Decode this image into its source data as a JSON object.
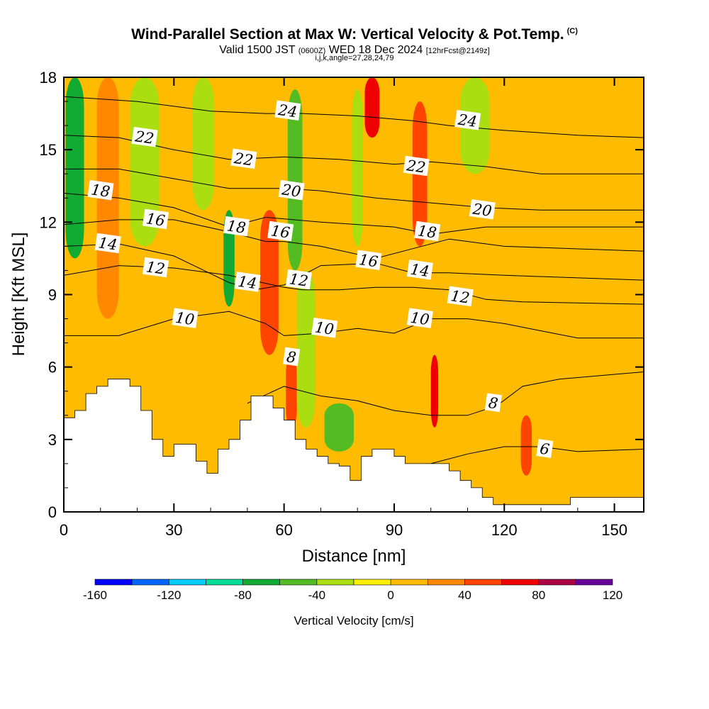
{
  "header": {
    "title": "Wind-Parallel Section at Max W: Vertical Velocity & Pot.Temp.",
    "copyright_mark": "(C)",
    "valid_prefix": "Valid 1500 JST",
    "utc": "(0600Z)",
    "valid_date": "WED 18 Dec 2024",
    "forecast": "[12hrFcst@2149z]",
    "indices": "i,j,k,angle=27,28,24,79"
  },
  "chart_data": {
    "type": "heatmap",
    "title": "Wind-Parallel Section at Max W: Vertical Velocity & Pot.Temp.",
    "xlabel": "Distance [nm]",
    "ylabel": "Height [Kft MSL]",
    "xlim": [
      0,
      158
    ],
    "ylim": [
      0,
      18
    ],
    "x_ticks": [
      0,
      30,
      60,
      90,
      120,
      150
    ],
    "y_ticks": [
      0,
      3,
      6,
      9,
      12,
      15,
      18
    ],
    "colorbar": {
      "title": "Vertical Velocity [cm/s]",
      "ticks": [
        -160,
        -120,
        -80,
        -40,
        0,
        40,
        80,
        120
      ],
      "bounds": [
        -160,
        -140,
        -120,
        -100,
        -80,
        -60,
        -40,
        -20,
        0,
        20,
        40,
        60,
        80,
        100,
        120
      ],
      "colors": [
        "#0000ff",
        "#0066ff",
        "#00ccff",
        "#00dd99",
        "#11aa33",
        "#55bb22",
        "#aade11",
        "#ffee00",
        "#ffbb00",
        "#ff8800",
        "#ff4400",
        "#ee0000",
        "#aa0044",
        "#660099"
      ]
    },
    "vertical_velocity_bands": [
      {
        "x": 3,
        "w": 5,
        "z0": 10.5,
        "z1": 18,
        "value": -70
      },
      {
        "x": 12,
        "w": 6,
        "z0": 8,
        "z1": 18,
        "value": 20
      },
      {
        "x": 22,
        "w": 8,
        "z0": 11,
        "z1": 18,
        "value": -40
      },
      {
        "x": 38,
        "w": 6,
        "z0": 12.5,
        "z1": 18,
        "value": -30
      },
      {
        "x": 45,
        "w": 3,
        "z0": 8.5,
        "z1": 12.5,
        "value": -70
      },
      {
        "x": 56,
        "w": 5,
        "z0": 6.5,
        "z1": 12.5,
        "value": 50
      },
      {
        "x": 62,
        "w": 3,
        "z0": 3.5,
        "z1": 6.5,
        "value": 55
      },
      {
        "x": 63,
        "w": 4,
        "z0": 10,
        "z1": 17.5,
        "value": -60
      },
      {
        "x": 66,
        "w": 5,
        "z0": 3.5,
        "z1": 10,
        "value": -40
      },
      {
        "x": 75,
        "w": 8,
        "z0": 2.5,
        "z1": 4.5,
        "value": -45
      },
      {
        "x": 80,
        "w": 3,
        "z0": 11,
        "z1": 17.5,
        "value": -35
      },
      {
        "x": 84,
        "w": 4,
        "z0": 15.5,
        "z1": 18,
        "value": 60
      },
      {
        "x": 97,
        "w": 4,
        "z0": 11,
        "z1": 17,
        "value": 55
      },
      {
        "x": 101,
        "w": 2,
        "z0": 3.5,
        "z1": 6.5,
        "value": 60
      },
      {
        "x": 112,
        "w": 8,
        "z0": 14,
        "z1": 18,
        "value": -35
      },
      {
        "x": 126,
        "w": 3,
        "z0": 1.5,
        "z1": 4,
        "value": 40
      }
    ],
    "potential_temperature_contours": [
      {
        "level": 6,
        "points": [
          [
            100,
            2.0
          ],
          [
            110,
            2.4
          ],
          [
            120,
            2.7
          ],
          [
            130,
            2.7
          ],
          [
            140,
            2.5
          ],
          [
            158,
            2.6
          ]
        ]
      },
      {
        "level": 8,
        "points": [
          [
            50,
            4.5
          ],
          [
            60,
            5.2
          ],
          [
            70,
            4.8
          ],
          [
            80,
            4.6
          ],
          [
            90,
            4.2
          ],
          [
            100,
            4.0
          ],
          [
            110,
            4.0
          ],
          [
            118,
            4.4
          ],
          [
            125,
            5.2
          ],
          [
            135,
            5.5
          ],
          [
            158,
            5.8
          ]
        ]
      },
      {
        "level": 10,
        "points": [
          [
            0,
            7.3
          ],
          [
            15,
            7.3
          ],
          [
            30,
            8.0
          ],
          [
            45,
            8.3
          ],
          [
            55,
            7.8
          ],
          [
            60,
            7.3
          ],
          [
            70,
            7.4
          ],
          [
            80,
            7.6
          ],
          [
            90,
            7.4
          ],
          [
            100,
            8.0
          ],
          [
            110,
            8.0
          ],
          [
            120,
            7.8
          ],
          [
            130,
            7.5
          ],
          [
            140,
            7.2
          ],
          [
            158,
            7.2
          ]
        ]
      },
      {
        "level": 12,
        "points": [
          [
            0,
            9.8
          ],
          [
            15,
            10.2
          ],
          [
            30,
            10.1
          ],
          [
            45,
            9.8
          ],
          [
            60,
            9.3
          ],
          [
            65,
            9.2
          ],
          [
            75,
            9.2
          ],
          [
            85,
            9.3
          ],
          [
            95,
            9.3
          ],
          [
            105,
            9.2
          ],
          [
            115,
            8.8
          ],
          [
            125,
            8.7
          ],
          [
            158,
            8.6
          ]
        ]
      },
      {
        "level": 14,
        "points": [
          [
            0,
            11.0
          ],
          [
            15,
            11.1
          ],
          [
            30,
            10.6
          ],
          [
            45,
            9.5
          ],
          [
            52,
            9.2
          ],
          [
            60,
            9.4
          ],
          [
            70,
            10.2
          ],
          [
            85,
            10.3
          ],
          [
            95,
            9.9
          ],
          [
            105,
            9.9
          ],
          [
            120,
            9.8
          ],
          [
            158,
            9.6
          ]
        ]
      },
      {
        "level": 16,
        "points": [
          [
            0,
            11.9
          ],
          [
            15,
            12.1
          ],
          [
            30,
            12.1
          ],
          [
            45,
            11.6
          ],
          [
            55,
            11.2
          ],
          [
            60,
            11.2
          ],
          [
            70,
            11.0
          ],
          [
            85,
            10.5
          ],
          [
            95,
            10.9
          ],
          [
            105,
            11.3
          ],
          [
            120,
            11.0
          ],
          [
            158,
            10.8
          ]
        ]
      },
      {
        "level": 18,
        "points": [
          [
            0,
            13.2
          ],
          [
            15,
            13.0
          ],
          [
            30,
            12.6
          ],
          [
            45,
            11.8
          ],
          [
            55,
            12.2
          ],
          [
            70,
            12.0
          ],
          [
            90,
            11.8
          ],
          [
            100,
            11.5
          ],
          [
            115,
            11.8
          ],
          [
            130,
            11.8
          ],
          [
            158,
            11.8
          ]
        ]
      },
      {
        "level": 20,
        "points": [
          [
            0,
            14.2
          ],
          [
            15,
            14.2
          ],
          [
            30,
            13.8
          ],
          [
            45,
            13.4
          ],
          [
            60,
            13.4
          ],
          [
            70,
            13.3
          ],
          [
            85,
            13.0
          ],
          [
            100,
            12.8
          ],
          [
            115,
            12.6
          ],
          [
            130,
            12.5
          ],
          [
            158,
            12.5
          ]
        ]
      },
      {
        "level": 22,
        "points": [
          [
            0,
            15.6
          ],
          [
            15,
            15.5
          ],
          [
            30,
            15.0
          ],
          [
            45,
            14.6
          ],
          [
            60,
            14.7
          ],
          [
            75,
            14.6
          ],
          [
            90,
            14.4
          ],
          [
            100,
            14.5
          ],
          [
            115,
            14.3
          ],
          [
            130,
            14.0
          ],
          [
            158,
            14.0
          ]
        ]
      },
      {
        "level": 24,
        "points": [
          [
            0,
            17.2
          ],
          [
            20,
            17.0
          ],
          [
            40,
            16.6
          ],
          [
            55,
            16.5
          ],
          [
            65,
            16.5
          ],
          [
            80,
            16.4
          ],
          [
            95,
            16.2
          ],
          [
            105,
            16.0
          ],
          [
            120,
            15.8
          ],
          [
            140,
            15.6
          ],
          [
            158,
            15.5
          ]
        ]
      }
    ],
    "contour_labels": [
      {
        "text": "22",
        "x": 22,
        "z": 15.5
      },
      {
        "text": "24",
        "x": 61,
        "z": 16.6
      },
      {
        "text": "24",
        "x": 110,
        "z": 16.2
      },
      {
        "text": "22",
        "x": 49,
        "z": 14.6
      },
      {
        "text": "22",
        "x": 96,
        "z": 14.3
      },
      {
        "text": "18",
        "x": 10,
        "z": 13.3
      },
      {
        "text": "20",
        "x": 62,
        "z": 13.3
      },
      {
        "text": "20",
        "x": 114,
        "z": 12.5
      },
      {
        "text": "16",
        "x": 25,
        "z": 12.1
      },
      {
        "text": "18",
        "x": 47,
        "z": 11.8
      },
      {
        "text": "16",
        "x": 59,
        "z": 11.6
      },
      {
        "text": "18",
        "x": 99,
        "z": 11.6
      },
      {
        "text": "14",
        "x": 12,
        "z": 11.1
      },
      {
        "text": "16",
        "x": 83,
        "z": 10.4
      },
      {
        "text": "14",
        "x": 97,
        "z": 10.0
      },
      {
        "text": "12",
        "x": 25,
        "z": 10.1
      },
      {
        "text": "12",
        "x": 64,
        "z": 9.6
      },
      {
        "text": "14",
        "x": 50,
        "z": 9.5
      },
      {
        "text": "12",
        "x": 108,
        "z": 8.9
      },
      {
        "text": "10",
        "x": 33,
        "z": 8.0
      },
      {
        "text": "10",
        "x": 71,
        "z": 7.6
      },
      {
        "text": "10",
        "x": 97,
        "z": 8.0
      },
      {
        "text": "8",
        "x": 62,
        "z": 6.4
      },
      {
        "text": "8",
        "x": 117,
        "z": 4.5
      },
      {
        "text": "6",
        "x": 131,
        "z": 2.6
      }
    ],
    "terrain": [
      [
        0,
        3.9
      ],
      [
        3,
        3.9
      ],
      [
        3,
        4.2
      ],
      [
        6,
        4.2
      ],
      [
        6,
        4.9
      ],
      [
        9,
        4.9
      ],
      [
        9,
        5.2
      ],
      [
        12,
        5.2
      ],
      [
        12,
        5.5
      ],
      [
        18,
        5.5
      ],
      [
        18,
        5.2
      ],
      [
        21,
        5.2
      ],
      [
        21,
        4.2
      ],
      [
        24,
        4.2
      ],
      [
        24,
        3.0
      ],
      [
        27,
        3.0
      ],
      [
        27,
        2.3
      ],
      [
        30,
        2.3
      ],
      [
        30,
        2.8
      ],
      [
        36,
        2.8
      ],
      [
        36,
        2.1
      ],
      [
        39,
        2.1
      ],
      [
        39,
        1.6
      ],
      [
        42,
        1.6
      ],
      [
        42,
        2.6
      ],
      [
        45,
        2.6
      ],
      [
        45,
        3.0
      ],
      [
        48,
        3.0
      ],
      [
        48,
        3.8
      ],
      [
        51,
        3.8
      ],
      [
        51,
        4.8
      ],
      [
        57,
        4.8
      ],
      [
        57,
        4.3
      ],
      [
        60,
        4.3
      ],
      [
        60,
        3.8
      ],
      [
        63,
        3.8
      ],
      [
        63,
        3.0
      ],
      [
        66,
        3.0
      ],
      [
        66,
        2.6
      ],
      [
        69,
        2.6
      ],
      [
        69,
        2.3
      ],
      [
        72,
        2.3
      ],
      [
        72,
        2.0
      ],
      [
        75,
        2.0
      ],
      [
        75,
        1.9
      ],
      [
        78,
        1.9
      ],
      [
        78,
        1.3
      ],
      [
        81,
        1.3
      ],
      [
        81,
        2.3
      ],
      [
        84,
        2.3
      ],
      [
        84,
        2.6
      ],
      [
        90,
        2.6
      ],
      [
        90,
        2.3
      ],
      [
        93,
        2.3
      ],
      [
        93,
        2.0
      ],
      [
        105,
        2.0
      ],
      [
        105,
        1.7
      ],
      [
        108,
        1.7
      ],
      [
        108,
        1.3
      ],
      [
        111,
        1.3
      ],
      [
        111,
        1.0
      ],
      [
        114,
        1.0
      ],
      [
        114,
        0.6
      ],
      [
        117,
        0.6
      ],
      [
        117,
        0.3
      ],
      [
        138,
        0.3
      ],
      [
        138,
        0.6
      ],
      [
        158,
        0.6
      ],
      [
        158,
        0
      ],
      [
        0,
        0
      ]
    ]
  }
}
